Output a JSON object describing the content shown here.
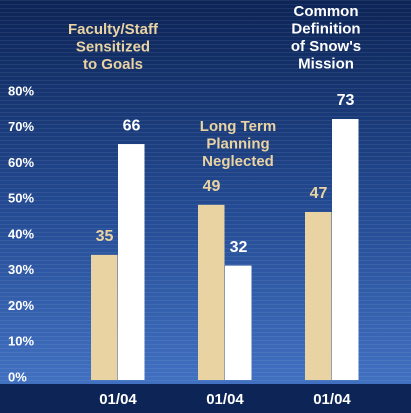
{
  "chart_data": {
    "type": "bar",
    "categories": [
      "01/04",
      "01/04",
      "01/04"
    ],
    "series": [
      {
        "color": "#ead3a2",
        "values": [
          35,
          49,
          47
        ]
      },
      {
        "color": "#ffffff",
        "values": [
          66,
          32,
          73
        ]
      }
    ],
    "annotations": [
      {
        "lines": [
          "Faculty/Staff",
          "Sensitized",
          "to Goals"
        ],
        "color": "#ead3a2"
      },
      {
        "lines": [
          "Long Term",
          "Planning",
          "Neglected"
        ],
        "color": "#ead3a2"
      },
      {
        "lines": [
          "Common",
          "Definition",
          "of Snow's",
          "Mission"
        ],
        "color": "#ffffff"
      }
    ],
    "ylim": [
      0,
      80
    ],
    "yticks": [
      {
        "value": 0,
        "label": "0%"
      },
      {
        "value": 10,
        "label": "10%"
      },
      {
        "value": 20,
        "label": "20%"
      },
      {
        "value": 30,
        "label": "30%"
      },
      {
        "value": 40,
        "label": "40%"
      },
      {
        "value": 50,
        "label": "50%"
      },
      {
        "value": 60,
        "label": "60%"
      },
      {
        "value": 70,
        "label": "70%"
      },
      {
        "value": 80,
        "label": "80%"
      }
    ]
  }
}
